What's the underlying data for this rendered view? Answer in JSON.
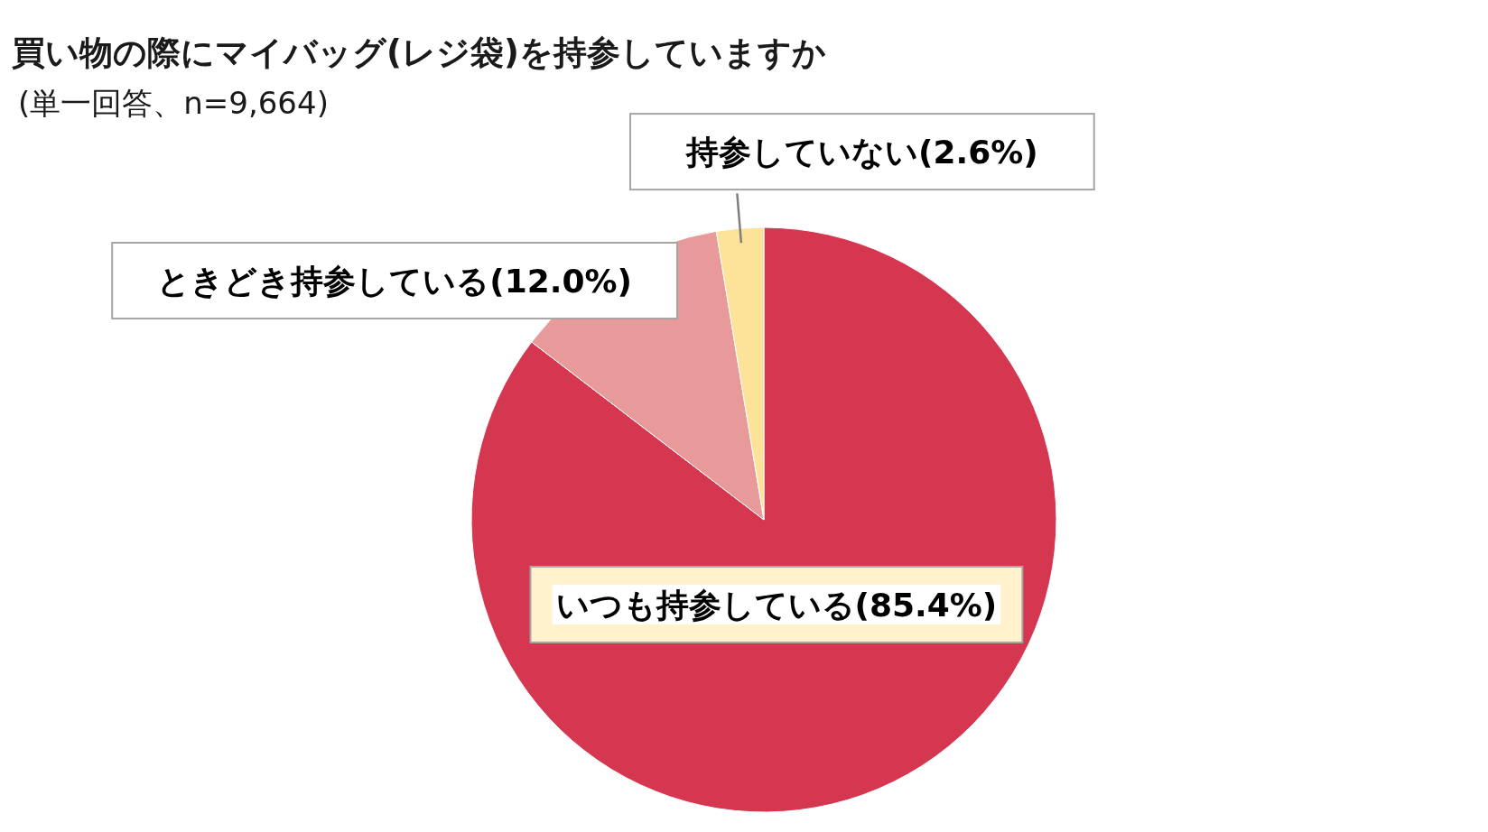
{
  "chart_data": {
    "type": "pie",
    "title": "買い物の際にマイバッグ(レジ袋)を持参していますか",
    "subtitle": "(単一回答、n=9,664)",
    "categories": [
      "いつも持参している",
      "ときどき持参している",
      "持参していない"
    ],
    "values": [
      85.4,
      12.0,
      2.6
    ],
    "colors": [
      "#d63750",
      "#e8999a",
      "#fde39a"
    ],
    "value_labels": [
      "(85.4%)",
      "(12.0%)",
      "(2.6%)"
    ]
  }
}
